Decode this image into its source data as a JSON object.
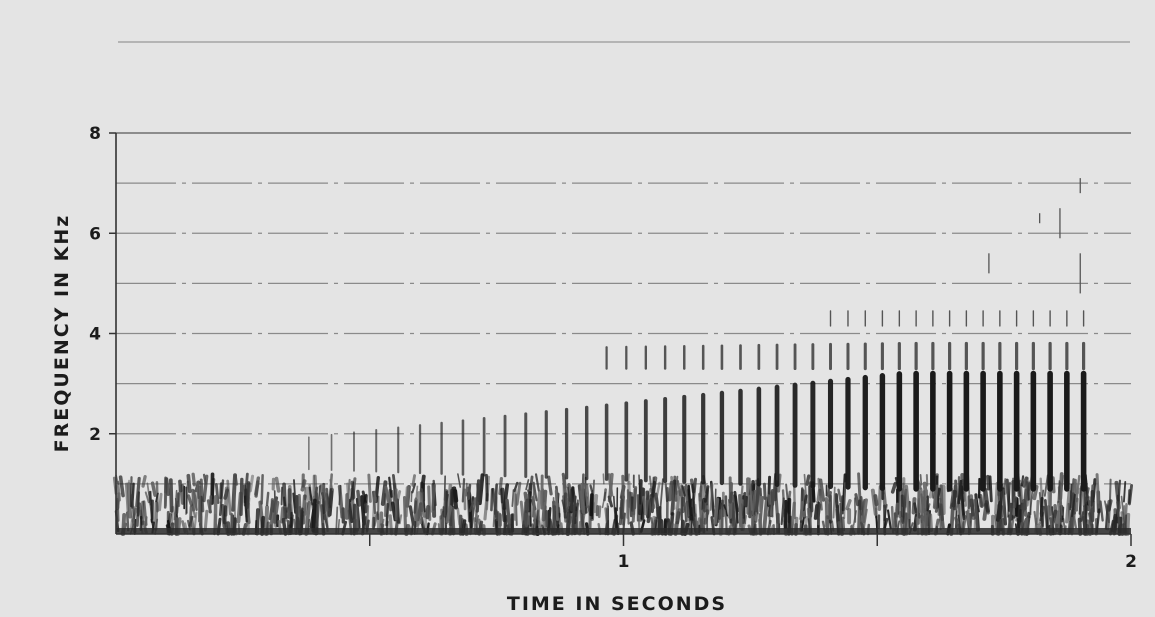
{
  "chart_data": {
    "type": "heatmap",
    "title": "",
    "xlabel": "TIME IN SECONDS",
    "ylabel": "FREQUENCY IN KHz",
    "xlim": [
      0,
      2
    ],
    "ylim": [
      0,
      8
    ],
    "x_ticks": [
      0.5,
      1,
      1.5,
      2
    ],
    "x_tick_labels": [
      "1",
      "2"
    ],
    "x_tick_label_values": [
      1,
      2
    ],
    "y_ticks": [
      2,
      4,
      6,
      8
    ],
    "y_tick_labels": [
      "2",
      "4",
      "6",
      "8"
    ],
    "grid": true,
    "grid_frequencies_khz": [
      1,
      2,
      3,
      4,
      5,
      6,
      7,
      8
    ],
    "colors": {
      "background": "#e4e4e4",
      "ink": "#1a1a1a",
      "grid": "#8a8a8a"
    }
  }
}
